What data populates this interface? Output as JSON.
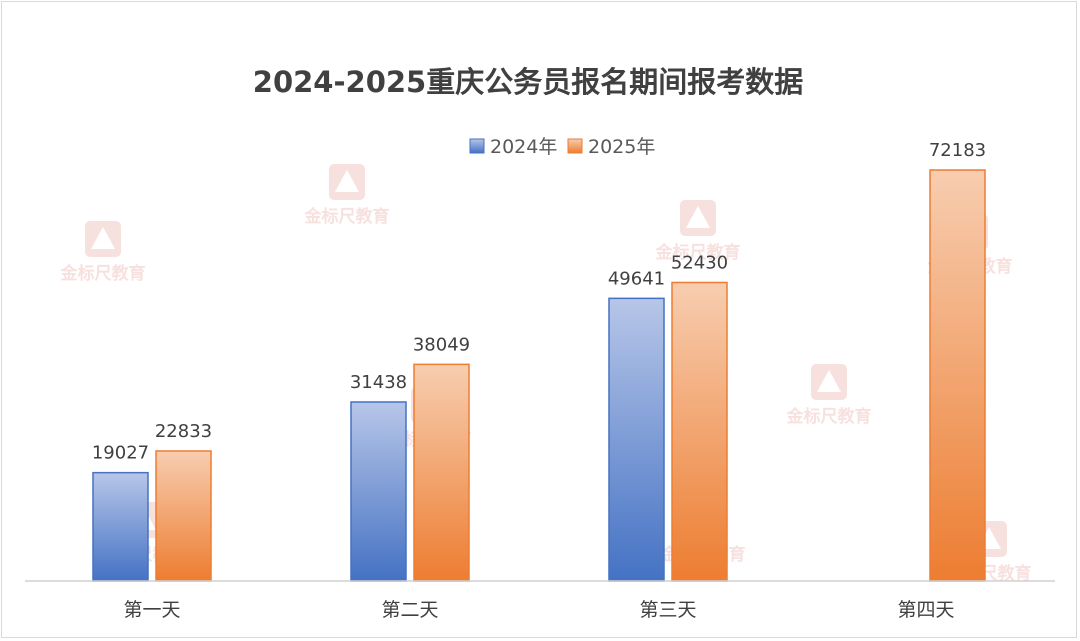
{
  "chart_data": {
    "type": "bar",
    "title": "2024-2025重庆公务员报名期间报考数据",
    "categories": [
      "第一天",
      "第二天",
      "第三天",
      "第四天"
    ],
    "series": [
      {
        "name": "2024年",
        "values": [
          19027,
          31438,
          49641,
          null
        ],
        "color": "#4472c4"
      },
      {
        "name": "2025年",
        "values": [
          22833,
          38049,
          52430,
          72183
        ],
        "color": "#ed7d31"
      }
    ],
    "ylim": [
      0,
      75000
    ],
    "grid": false,
    "legend_position": "top-center",
    "data_labels": true
  },
  "watermark": {
    "text": "金标尺教育"
  }
}
